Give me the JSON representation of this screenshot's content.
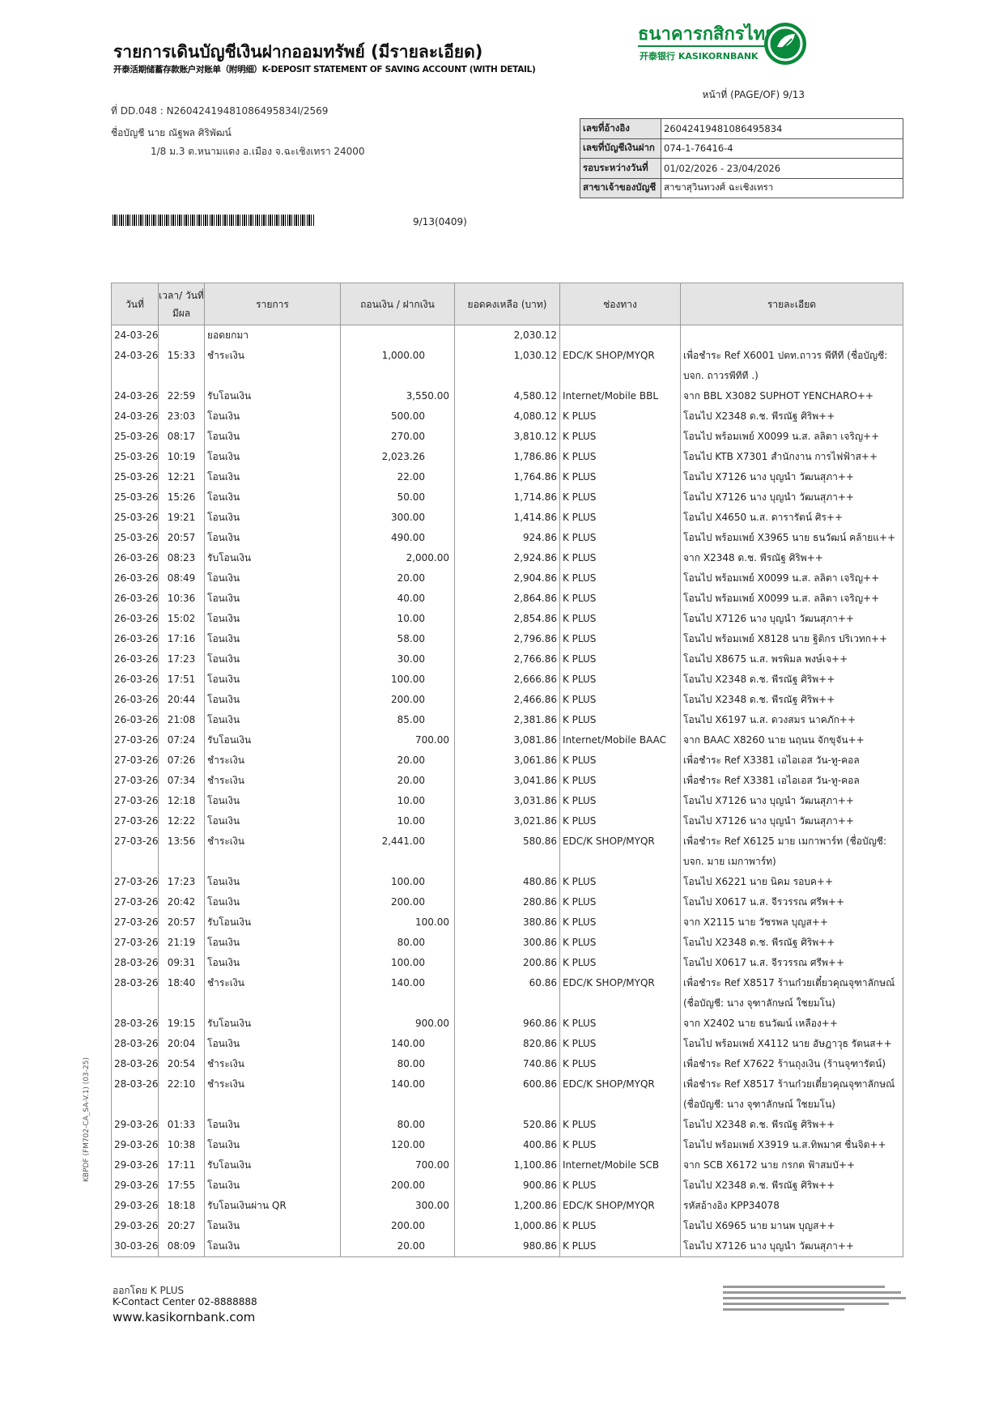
{
  "header": {
    "title": "รายการเดินบัญชีเงินฝากออมทรัพย์ (มีรายละเอียด)",
    "subtitle": "开泰活期储蓄存款账户对账单（附明细）K-DEPOSIT STATEMENT OF SAVING ACCOUNT (WITH DETAIL)",
    "bank_name": "ธนาคารกสิกรไทย",
    "bank_sub": "开泰银行 KASIKORNBANK",
    "page": "หน้าที่ (PAGE/OF) 9/13",
    "brand_color": "#0a8a3c"
  },
  "doc_ref": "ที่ DD.048 : N26042419481086495834I/2569",
  "account_name": "ชื่อบัญชี  นาย ณัฐพล ศิริพัฒน์",
  "address": "1/8 ม.3 ต.หนามแดง อ.เมือง จ.ฉะเชิงเทรา 24000",
  "info": [
    {
      "label": "เลขที่อ้างอิง",
      "value": "26042419481086495834"
    },
    {
      "label": "เลขที่บัญชีเงินฝาก",
      "value": "074-1-76416-4"
    },
    {
      "label": "รอบระหว่างวันที่",
      "value": "01/02/2026 - 23/04/2026"
    },
    {
      "label": "สาขาเจ้าของบัญชี",
      "value": "สาขาสุวินทวงศ์ ฉะเชิงเทรา"
    }
  ],
  "barcode_number": "9/13(0409)",
  "table": {
    "headers": [
      "วันที่",
      "เวลา/ วันที่มีผล",
      "รายการ",
      "ถอนเงิน / ฝากเงิน",
      "ยอดคงเหลือ (บาท)",
      "ช่องทาง",
      "รายละเอียด"
    ],
    "rows": [
      [
        "24-03-26",
        "",
        "ยอดยกมา",
        "",
        "",
        "2,030.12",
        "",
        ""
      ],
      [
        "24-03-26",
        "15:33",
        "ชำระเงิน",
        "1,000.00",
        "w",
        "1,030.12",
        "EDC/K SHOP/MYQR",
        "เพื่อชำระ Ref X6001 ปตท.ถาวร พีทีที (ชื่อบัญชี: บจก. ถาวรพีทีที .)"
      ],
      [
        "24-03-26",
        "22:59",
        "รับโอนเงิน",
        "3,550.00",
        "d",
        "4,580.12",
        "Internet/Mobile BBL",
        "จาก BBL X3082 SUPHOT YENCHARO++"
      ],
      [
        "24-03-26",
        "23:03",
        "โอนเงิน",
        "500.00",
        "w",
        "4,080.12",
        "K PLUS",
        "โอนไป X2348 ด.ช. พีรณัฐ ศิริพ++"
      ],
      [
        "25-03-26",
        "08:17",
        "โอนเงิน",
        "270.00",
        "w",
        "3,810.12",
        "K PLUS",
        "โอนไป พร้อมเพย์ X0099 น.ส. ลลิตา เจริญ++"
      ],
      [
        "25-03-26",
        "10:19",
        "โอนเงิน",
        "2,023.26",
        "w",
        "1,786.86",
        "K PLUS",
        "โอนไป KTB X7301 สำนักงาน การไฟฟ้าส++"
      ],
      [
        "25-03-26",
        "12:21",
        "โอนเงิน",
        "22.00",
        "w",
        "1,764.86",
        "K PLUS",
        "โอนไป X7126 นาง บุญนำ วัฒนสุภา++"
      ],
      [
        "25-03-26",
        "15:26",
        "โอนเงิน",
        "50.00",
        "w",
        "1,714.86",
        "K PLUS",
        "โอนไป X7126 นาง บุญนำ วัฒนสุภา++"
      ],
      [
        "25-03-26",
        "19:21",
        "โอนเงิน",
        "300.00",
        "w",
        "1,414.86",
        "K PLUS",
        "โอนไป X4650 น.ส. ดารารัตน์ ศิร++"
      ],
      [
        "25-03-26",
        "20:57",
        "โอนเงิน",
        "490.00",
        "w",
        "924.86",
        "K PLUS",
        "โอนไป พร้อมเพย์ X3965 นาย ธนวัฒน์ คล้ายแ++"
      ],
      [
        "26-03-26",
        "08:23",
        "รับโอนเงิน",
        "2,000.00",
        "d",
        "2,924.86",
        "K PLUS",
        "จาก X2348 ด.ช. พีรณัฐ ศิริพ++"
      ],
      [
        "26-03-26",
        "08:49",
        "โอนเงิน",
        "20.00",
        "w",
        "2,904.86",
        "K PLUS",
        "โอนไป พร้อมเพย์ X0099 น.ส. ลลิตา เจริญ++"
      ],
      [
        "26-03-26",
        "10:36",
        "โอนเงิน",
        "40.00",
        "w",
        "2,864.86",
        "K PLUS",
        "โอนไป พร้อมเพย์ X0099 น.ส. ลลิตา เจริญ++"
      ],
      [
        "26-03-26",
        "15:02",
        "โอนเงิน",
        "10.00",
        "w",
        "2,854.86",
        "K PLUS",
        "โอนไป X7126 นาง บุญนำ วัฒนสุภา++"
      ],
      [
        "26-03-26",
        "17:16",
        "โอนเงิน",
        "58.00",
        "w",
        "2,796.86",
        "K PLUS",
        "โอนไป พร้อมเพย์ X8128 นาย ฐิติกร ปริเวทก++"
      ],
      [
        "26-03-26",
        "17:23",
        "โอนเงิน",
        "30.00",
        "w",
        "2,766.86",
        "K PLUS",
        "โอนไป X8675 น.ส. พรพิมล พงษ์เจ++"
      ],
      [
        "26-03-26",
        "17:51",
        "โอนเงิน",
        "100.00",
        "w",
        "2,666.86",
        "K PLUS",
        "โอนไป X2348 ด.ช. พีรณัฐ ศิริพ++"
      ],
      [
        "26-03-26",
        "20:44",
        "โอนเงิน",
        "200.00",
        "w",
        "2,466.86",
        "K PLUS",
        "โอนไป X2348 ด.ช. พีรณัฐ ศิริพ++"
      ],
      [
        "26-03-26",
        "21:08",
        "โอนเงิน",
        "85.00",
        "w",
        "2,381.86",
        "K PLUS",
        "โอนไป X6197 น.ส. ดวงสมร นาคภัก++"
      ],
      [
        "27-03-26",
        "07:24",
        "รับโอนเงิน",
        "700.00",
        "d",
        "3,081.86",
        "Internet/Mobile BAAC",
        "จาก BAAC X8260 นาย นฤนน จักขุจัน++"
      ],
      [
        "27-03-26",
        "07:26",
        "ชำระเงิน",
        "20.00",
        "w",
        "3,061.86",
        "K PLUS",
        "เพื่อชำระ Ref X3381 เอไอเอส วัน-ทู-คอล"
      ],
      [
        "27-03-26",
        "07:34",
        "ชำระเงิน",
        "20.00",
        "w",
        "3,041.86",
        "K PLUS",
        "เพื่อชำระ Ref X3381 เอไอเอส วัน-ทู-คอล"
      ],
      [
        "27-03-26",
        "12:18",
        "โอนเงิน",
        "10.00",
        "w",
        "3,031.86",
        "K PLUS",
        "โอนไป X7126 นาง บุญนำ วัฒนสุภา++"
      ],
      [
        "27-03-26",
        "12:22",
        "โอนเงิน",
        "10.00",
        "w",
        "3,021.86",
        "K PLUS",
        "โอนไป X7126 นาง บุญนำ วัฒนสุภา++"
      ],
      [
        "27-03-26",
        "13:56",
        "ชำระเงิน",
        "2,441.00",
        "w",
        "580.86",
        "EDC/K SHOP/MYQR",
        "เพื่อชำระ Ref X6125 มาย เมกาพาร์ท (ชื่อบัญชี: บจก. มาย เมกาพาร์ท)"
      ],
      [
        "27-03-26",
        "17:23",
        "โอนเงิน",
        "100.00",
        "w",
        "480.86",
        "K PLUS",
        "โอนไป X6221 นาย นิคม รอบค++"
      ],
      [
        "27-03-26",
        "20:42",
        "โอนเงิน",
        "200.00",
        "w",
        "280.86",
        "K PLUS",
        "โอนไป X0617 น.ส. จีรวรรณ ศรีพ++"
      ],
      [
        "27-03-26",
        "20:57",
        "รับโอนเงิน",
        "100.00",
        "d",
        "380.86",
        "K PLUS",
        "จาก X2115 นาย วัชรพล บุญส++"
      ],
      [
        "27-03-26",
        "21:19",
        "โอนเงิน",
        "80.00",
        "w",
        "300.86",
        "K PLUS",
        "โอนไป X2348 ด.ช. พีรณัฐ ศิริพ++"
      ],
      [
        "28-03-26",
        "09:31",
        "โอนเงิน",
        "100.00",
        "w",
        "200.86",
        "K PLUS",
        "โอนไป X0617 น.ส. จีรวรรณ ศรีพ++"
      ],
      [
        "28-03-26",
        "18:40",
        "ชำระเงิน",
        "140.00",
        "w",
        "60.86",
        "EDC/K SHOP/MYQR",
        "เพื่อชำระ Ref X8517 ร้านก๋วยเตี๋ยวคุณจุฑาลักษณ์ (ชื่อบัญชี: นาง จุฑาลักษณ์ ใชยมโน)"
      ],
      [
        "28-03-26",
        "19:15",
        "รับโอนเงิน",
        "900.00",
        "d",
        "960.86",
        "K PLUS",
        "จาก X2402 นาย ธนวัฒน์ เหลือง++"
      ],
      [
        "28-03-26",
        "20:04",
        "โอนเงิน",
        "140.00",
        "w",
        "820.86",
        "K PLUS",
        "โอนไป พร้อมเพย์ X4112 นาย อัษฎาวุธ รัตนส++"
      ],
      [
        "28-03-26",
        "20:54",
        "ชำระเงิน",
        "80.00",
        "w",
        "740.86",
        "K PLUS",
        "เพื่อชำระ Ref X7622 ร้านถุงเงิน (ร้านจุฑารัตน์)"
      ],
      [
        "28-03-26",
        "22:10",
        "ชำระเงิน",
        "140.00",
        "w",
        "600.86",
        "EDC/K SHOP/MYQR",
        "เพื่อชำระ Ref X8517 ร้านก๋วยเตี๋ยวคุณจุฑาลักษณ์ (ชื่อบัญชี: นาง จุฑาลักษณ์ ใชยมโน)"
      ],
      [
        "29-03-26",
        "01:33",
        "โอนเงิน",
        "80.00",
        "w",
        "520.86",
        "K PLUS",
        "โอนไป X2348 ด.ช. พีรณัฐ ศิริพ++"
      ],
      [
        "29-03-26",
        "10:38",
        "โอนเงิน",
        "120.00",
        "w",
        "400.86",
        "K PLUS",
        "โอนไป พร้อมเพย์ X3919 น.ส.ทิพมาศ ชื่นจิต++"
      ],
      [
        "29-03-26",
        "17:11",
        "รับโอนเงิน",
        "700.00",
        "d",
        "1,100.86",
        "Internet/Mobile SCB",
        "จาก SCB X6172 นาย กรกต ฟ้าสมบั++"
      ],
      [
        "29-03-26",
        "17:55",
        "โอนเงิน",
        "200.00",
        "w",
        "900.86",
        "K PLUS",
        "โอนไป X2348 ด.ช. พีรณัฐ ศิริพ++"
      ],
      [
        "29-03-26",
        "18:18",
        "รับโอนเงินผ่าน QR",
        "300.00",
        "d",
        "1,200.86",
        "EDC/K SHOP/MYQR",
        "รหัสอ้างอิง KPP34078"
      ],
      [
        "29-03-26",
        "20:27",
        "โอนเงิน",
        "200.00",
        "w",
        "1,000.86",
        "K PLUS",
        "โอนไป X6965 นาย มานพ บุญส++"
      ],
      [
        "30-03-26",
        "08:09",
        "โอนเงิน",
        "20.00",
        "w",
        "980.86",
        "K PLUS",
        "โอนไป X7126 นาง บุญนำ วัฒนสุภา++"
      ]
    ]
  },
  "side_code": "KBPDF (FM702-CA_SA-V.1) (03-25)",
  "footer": {
    "issued": "ออกโดย K PLUS",
    "contact": "K-Contact Center 02-8888888",
    "website": "www.kasikornbank.com"
  }
}
